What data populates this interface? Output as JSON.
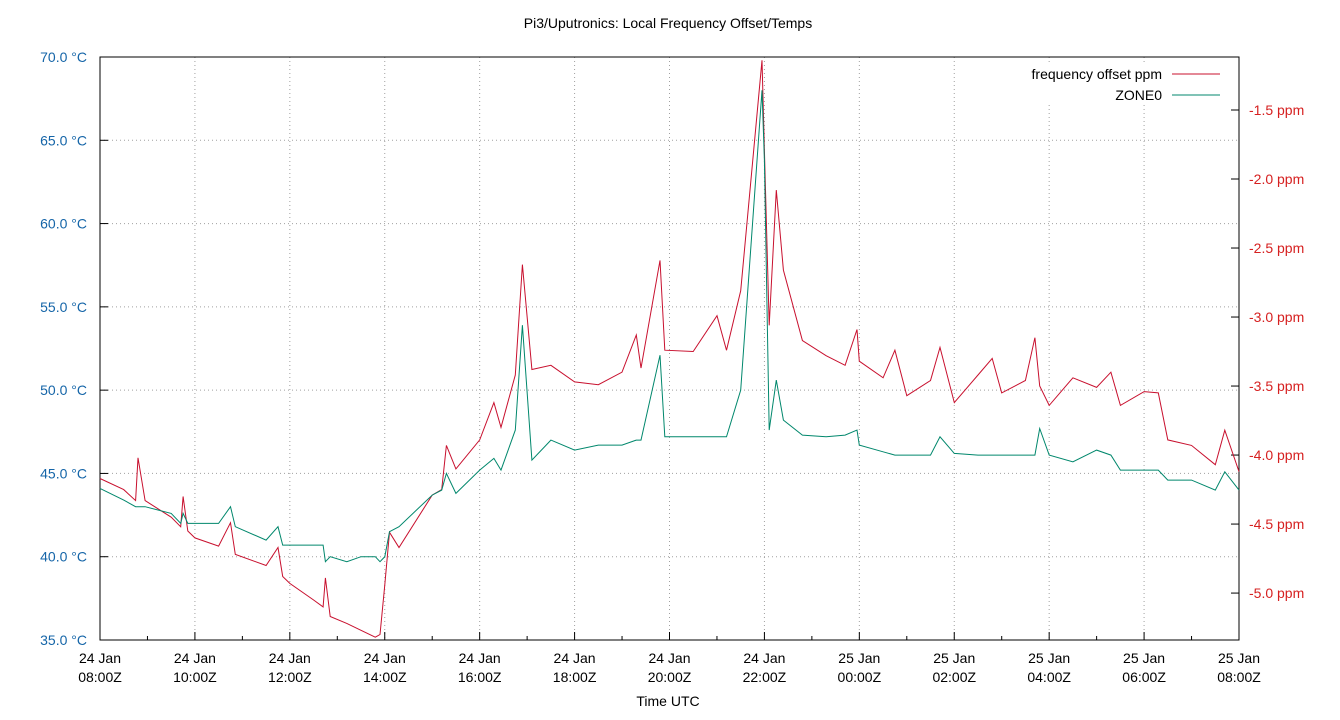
{
  "chart_data": {
    "type": "line",
    "title": "Pi3/Uputronics: Local Frequency Offset/Temps",
    "x_label": "Time UTC",
    "x": [
      "24 Jan 08:00Z",
      "24 Jan 08:30Z",
      "24 Jan 08:45Z",
      "24 Jan 08:48Z",
      "24 Jan 08:57Z",
      "24 Jan 09:30Z",
      "24 Jan 09:42Z",
      "24 Jan 09:45Z",
      "24 Jan 09:51Z",
      "24 Jan 10:00Z",
      "24 Jan 10:30Z",
      "24 Jan 10:45Z",
      "24 Jan 10:51Z",
      "24 Jan 11:30Z",
      "24 Jan 11:45Z",
      "24 Jan 11:51Z",
      "24 Jan 12:00Z",
      "24 Jan 12:30Z",
      "24 Jan 12:42Z",
      "24 Jan 12:45Z",
      "24 Jan 12:51Z",
      "24 Jan 13:12Z",
      "24 Jan 13:30Z",
      "24 Jan 13:48Z",
      "24 Jan 13:54Z",
      "24 Jan 14:00Z",
      "24 Jan 14:06Z",
      "24 Jan 14:18Z",
      "24 Jan 15:00Z",
      "24 Jan 15:12Z",
      "24 Jan 15:18Z",
      "24 Jan 15:30Z",
      "24 Jan 16:00Z",
      "24 Jan 16:18Z",
      "24 Jan 16:27Z",
      "24 Jan 16:45Z",
      "24 Jan 16:54Z",
      "24 Jan 17:06Z",
      "24 Jan 17:30Z",
      "24 Jan 18:00Z",
      "24 Jan 18:30Z",
      "24 Jan 19:00Z",
      "24 Jan 19:18Z",
      "24 Jan 19:24Z",
      "24 Jan 19:48Z",
      "24 Jan 19:54Z",
      "24 Jan 20:30Z",
      "24 Jan 21:00Z",
      "24 Jan 21:12Z",
      "24 Jan 21:30Z",
      "24 Jan 21:57Z",
      "24 Jan 22:00Z",
      "24 Jan 22:06Z",
      "24 Jan 22:15Z",
      "24 Jan 22:24Z",
      "24 Jan 22:48Z",
      "24 Jan 23:18Z",
      "24 Jan 23:42Z",
      "24 Jan 23:57Z",
      "25 Jan 00:00Z",
      "25 Jan 00:30Z",
      "25 Jan 00:45Z",
      "25 Jan 01:00Z",
      "25 Jan 01:30Z",
      "25 Jan 01:42Z",
      "25 Jan 02:00Z",
      "25 Jan 02:30Z",
      "25 Jan 02:48Z",
      "25 Jan 03:00Z",
      "25 Jan 03:30Z",
      "25 Jan 03:42Z",
      "25 Jan 03:48Z",
      "25 Jan 04:00Z",
      "25 Jan 04:30Z",
      "25 Jan 05:00Z",
      "25 Jan 05:18Z",
      "25 Jan 05:30Z",
      "25 Jan 06:00Z",
      "25 Jan 06:18Z",
      "25 Jan 06:30Z",
      "25 Jan 07:00Z",
      "25 Jan 07:30Z",
      "25 Jan 07:42Z",
      "25 Jan 08:00Z"
    ],
    "series": [
      {
        "name": "frequency offset ppm",
        "color": "#c8102e",
        "axis": "y2",
        "values": [
          -4.17,
          -4.25,
          -4.33,
          -4.02,
          -4.33,
          -4.45,
          -4.52,
          -4.3,
          -4.55,
          -4.6,
          -4.66,
          -4.49,
          -4.72,
          -4.8,
          -4.67,
          -4.88,
          -4.93,
          -5.05,
          -5.1,
          -4.89,
          -5.17,
          -5.22,
          -5.27,
          -5.32,
          -5.3,
          -4.94,
          -4.56,
          -4.67,
          -4.29,
          -4.25,
          -3.93,
          -4.1,
          -3.89,
          -3.62,
          -3.8,
          -3.42,
          -2.62,
          -3.38,
          -3.35,
          -3.47,
          -3.49,
          -3.4,
          -3.13,
          -3.37,
          -2.59,
          -3.24,
          -3.25,
          -2.99,
          -3.24,
          -2.81,
          -1.14,
          -1.79,
          -3.06,
          -2.08,
          -2.66,
          -3.17,
          -3.28,
          -3.35,
          -3.09,
          -3.32,
          -3.44,
          -3.24,
          -3.57,
          -3.46,
          -3.22,
          -3.62,
          -3.42,
          -3.3,
          -3.55,
          -3.46,
          -3.15,
          -3.5,
          -3.64,
          -3.44,
          -3.51,
          -3.4,
          -3.64,
          -3.54,
          -3.55,
          -3.89,
          -3.93,
          -4.07,
          -3.82,
          -4.12
        ]
      },
      {
        "name": "ZONE0",
        "color": "#00876c",
        "axis": "y",
        "values": [
          44.1,
          43.4,
          43.0,
          43.0,
          43.0,
          42.6,
          42.0,
          42.6,
          42.0,
          42.0,
          42.0,
          43.0,
          41.8,
          41.0,
          41.8,
          40.7,
          40.7,
          40.7,
          40.7,
          39.7,
          40.0,
          39.7,
          40.0,
          40.0,
          39.7,
          40.0,
          41.5,
          41.8,
          43.7,
          44.0,
          45.0,
          43.8,
          45.2,
          45.9,
          45.2,
          47.6,
          53.9,
          45.8,
          47.0,
          46.4,
          46.7,
          46.7,
          47.0,
          47.0,
          52.1,
          47.2,
          47.2,
          47.2,
          47.2,
          50.0,
          68.0,
          63.8,
          47.6,
          50.6,
          48.2,
          47.3,
          47.2,
          47.3,
          47.6,
          46.7,
          46.3,
          46.1,
          46.1,
          46.1,
          47.2,
          46.2,
          46.1,
          46.1,
          46.1,
          46.1,
          46.1,
          47.7,
          46.1,
          45.7,
          46.4,
          46.1,
          45.2,
          45.2,
          45.2,
          44.6,
          44.6,
          44.0,
          45.1,
          44.0
        ]
      }
    ],
    "xlim": [
      "24 Jan 08:00Z",
      "25 Jan 08:00Z"
    ],
    "xticks": [
      "24 Jan 08:00Z",
      "24 Jan 10:00Z",
      "24 Jan 12:00Z",
      "24 Jan 14:00Z",
      "24 Jan 16:00Z",
      "24 Jan 18:00Z",
      "24 Jan 20:00Z",
      "24 Jan 22:00Z",
      "25 Jan 00:00Z",
      "25 Jan 02:00Z",
      "25 Jan 04:00Z",
      "25 Jan 06:00Z",
      "25 Jan 08:00Z"
    ],
    "ylim": [
      35,
      70
    ],
    "yticks": [
      {
        "value": 35,
        "label": "35.0 °C"
      },
      {
        "value": 40,
        "label": "40.0 °C"
      },
      {
        "value": 45,
        "label": "45.0 °C"
      },
      {
        "value": 50,
        "label": "50.0 °C"
      },
      {
        "value": 55,
        "label": "55.0 °C"
      },
      {
        "value": 60,
        "label": "60.0 °C"
      },
      {
        "value": 65,
        "label": "65.0 °C"
      },
      {
        "value": 70,
        "label": "70.0 °C"
      }
    ],
    "y_color": "#1565a8",
    "y2lim": [
      -5.34,
      -1.116
    ],
    "y2ticks": [
      {
        "value": -5,
        "label": "-5.0 ppm"
      },
      {
        "value": -4.5,
        "label": "-4.5 ppm"
      },
      {
        "value": -4,
        "label": "-4.0 ppm"
      },
      {
        "value": -3.5,
        "label": "-3.5 ppm"
      },
      {
        "value": -3,
        "label": "-3.0 ppm"
      },
      {
        "value": -2.5,
        "label": "-2.5 ppm"
      },
      {
        "value": -2,
        "label": "-2.0 ppm"
      },
      {
        "value": -1.5,
        "label": "-1.5 ppm"
      }
    ],
    "y2_color": "#d62020",
    "grid": true,
    "legend": "top-right"
  }
}
